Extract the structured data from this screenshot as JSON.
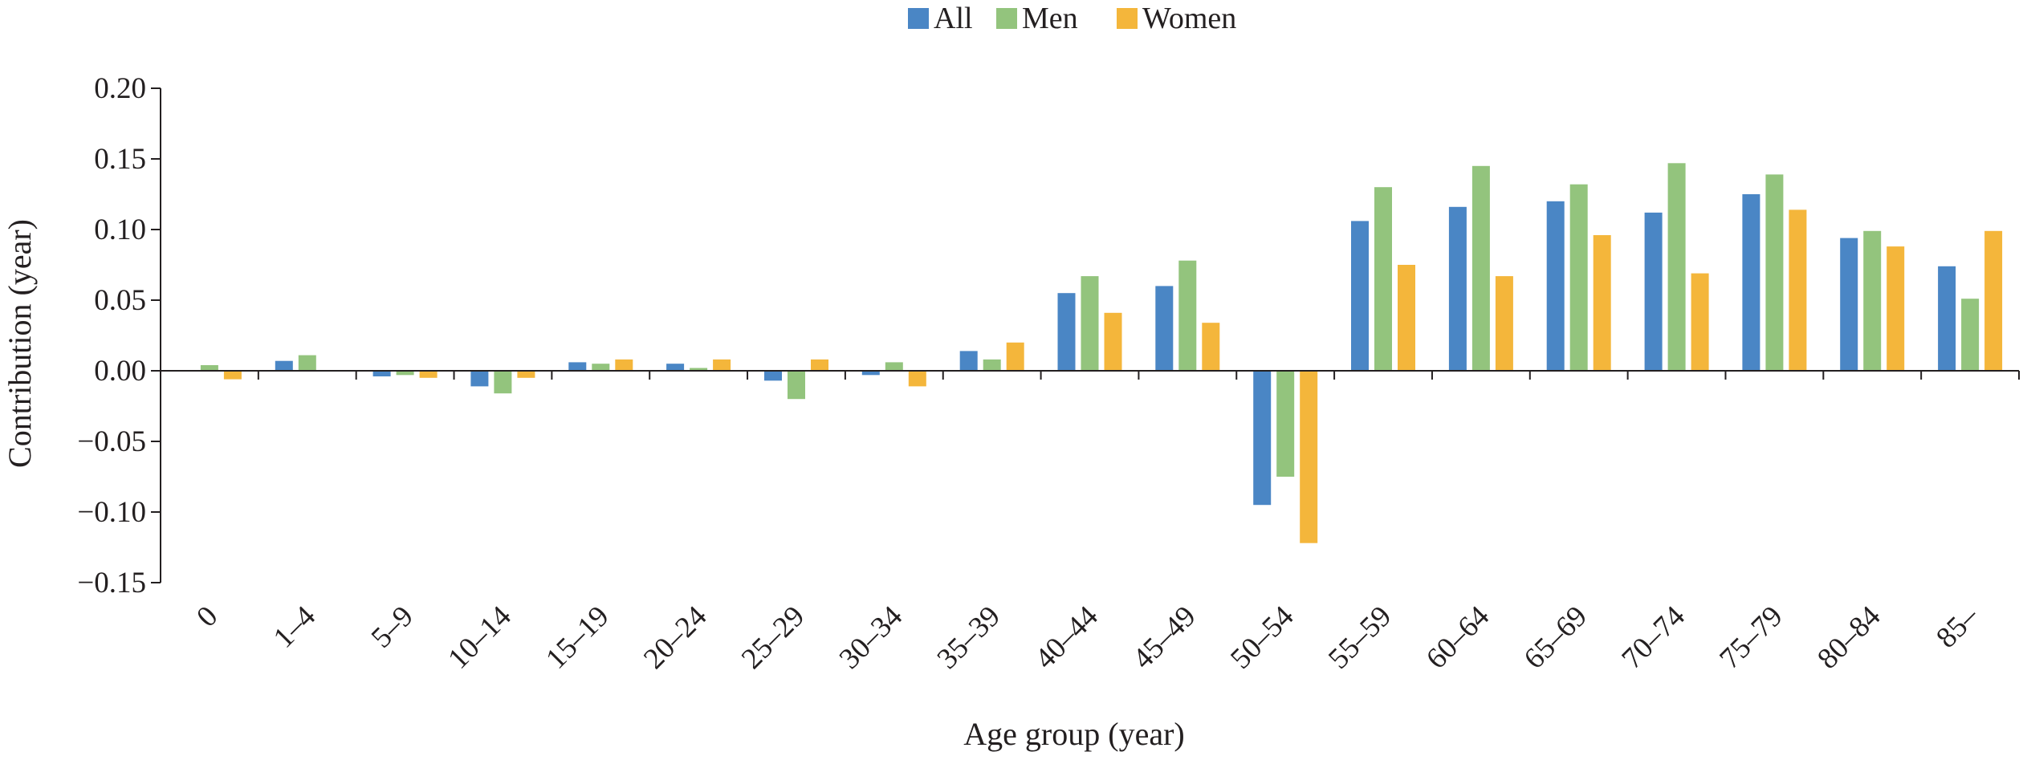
{
  "chart_data": {
    "type": "bar",
    "title": "",
    "xlabel": "Age group (year)",
    "ylabel": "Contribution (year)",
    "ylim": [
      -0.15,
      0.2
    ],
    "yticks": [
      0.2,
      0.15,
      0.1,
      0.05,
      0.0,
      -0.05,
      -0.1,
      -0.15
    ],
    "ytick_labels": [
      "0.20",
      "0.15",
      "0.10",
      "0.05",
      "0.00",
      "−0.05",
      "−0.10",
      "−0.15"
    ],
    "grid": false,
    "legend_position": "top-center",
    "categories": [
      "0",
      "1–4",
      "5–9",
      "10–14",
      "15–19",
      "20–24",
      "25–29",
      "30–34",
      "35–39",
      "40–44",
      "45–49",
      "50–54",
      "55–59",
      "60–64",
      "65–69",
      "70–74",
      "75–79",
      "80–84",
      "85–"
    ],
    "series": [
      {
        "name": "All",
        "color": "#4a86c5",
        "values": [
          0.0,
          0.007,
          -0.004,
          -0.011,
          0.006,
          0.005,
          -0.007,
          -0.003,
          0.014,
          0.055,
          0.06,
          -0.095,
          0.106,
          0.116,
          0.12,
          0.112,
          0.125,
          0.094,
          0.074
        ]
      },
      {
        "name": "Men",
        "color": "#93c47d",
        "values": [
          0.004,
          0.011,
          -0.003,
          -0.016,
          0.005,
          0.002,
          -0.02,
          0.006,
          0.008,
          0.067,
          0.078,
          -0.075,
          0.13,
          0.145,
          0.132,
          0.147,
          0.139,
          0.099,
          0.051
        ]
      },
      {
        "name": "Women",
        "color": "#f4b63b",
        "values": [
          -0.006,
          0.0,
          -0.005,
          -0.005,
          0.008,
          0.008,
          0.008,
          -0.011,
          0.02,
          0.041,
          0.034,
          -0.122,
          0.075,
          0.067,
          0.096,
          0.069,
          0.114,
          0.088,
          0.099
        ]
      }
    ]
  }
}
